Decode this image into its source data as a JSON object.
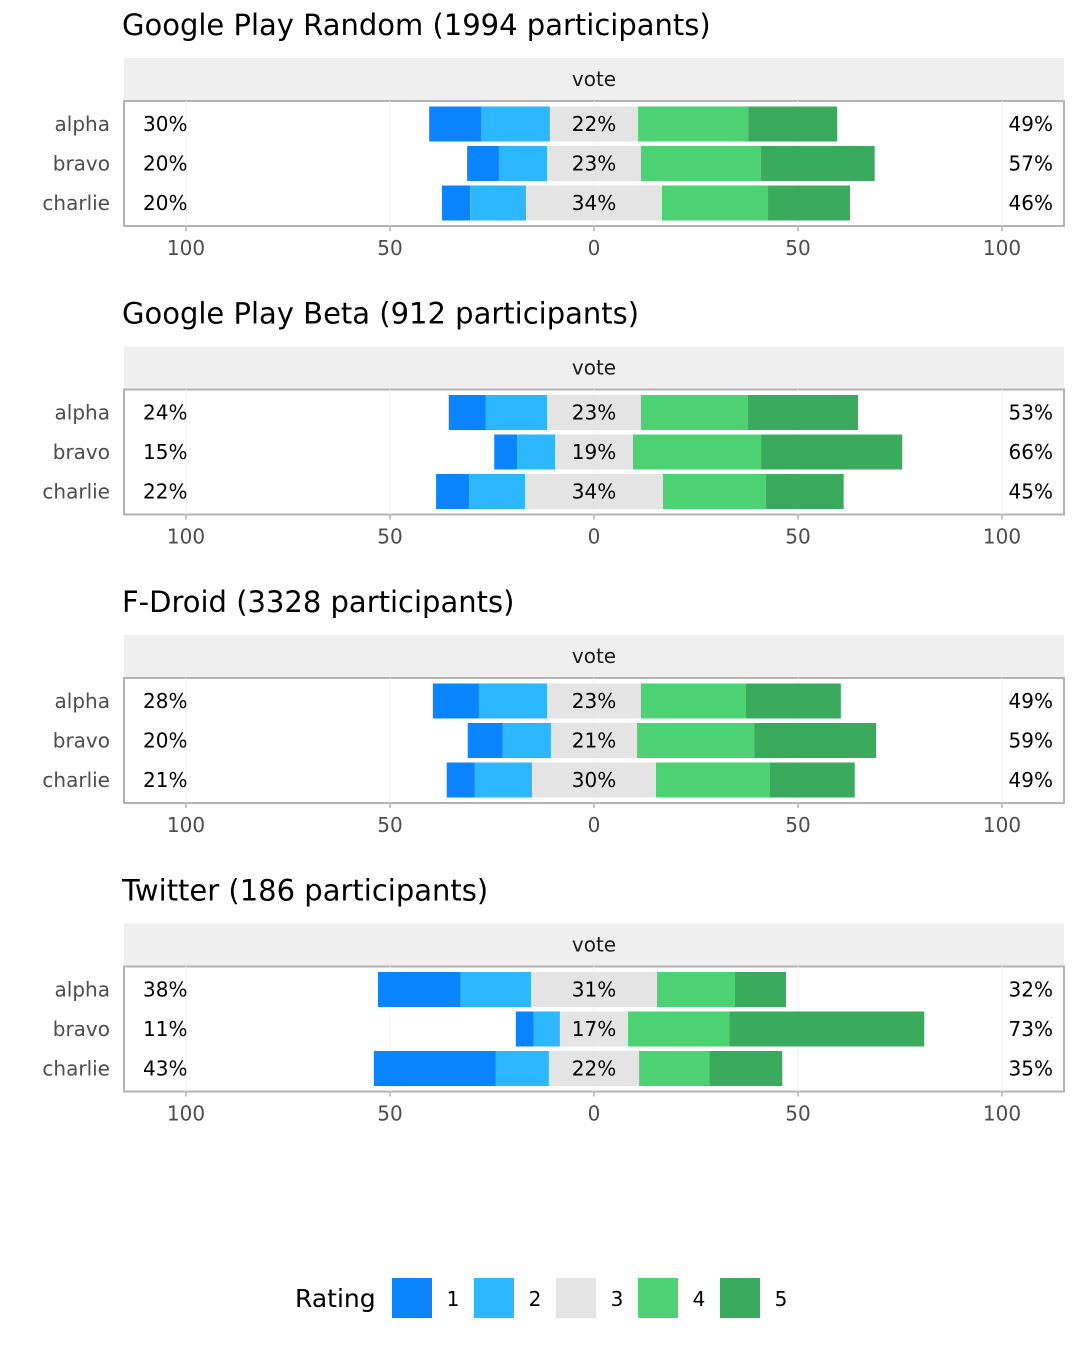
{
  "chart_data": {
    "type": "bar",
    "subtype": "diverging-stacked-likert",
    "legend": {
      "title": "Rating",
      "entries": [
        "1",
        "2",
        "3",
        "4",
        "5"
      ],
      "placement": "bottom"
    },
    "colors": {
      "1": "#0a84ff",
      "2": "#2db7ff",
      "3": "#e4e4e4",
      "4": "#4cd173",
      "5": "#3aab5c"
    },
    "xlim": [
      -115,
      115
    ],
    "xticks": [
      -100,
      -50,
      0,
      50,
      100
    ],
    "xtick_labels": [
      "100",
      "50",
      "0",
      "50",
      "100"
    ],
    "panels": [
      {
        "title": "Google Play Random (1994 participants)",
        "strip": "vote",
        "rows": [
          {
            "label": "alpha",
            "values": [
              12.7,
              16.9,
              21.6,
              27.0,
              21.8
            ],
            "left": "30%",
            "center": "22%",
            "right": "49%"
          },
          {
            "label": "bravo",
            "values": [
              7.8,
              11.8,
              23.0,
              29.4,
              27.9
            ],
            "left": "20%",
            "center": "23%",
            "right": "57%"
          },
          {
            "label": "charlie",
            "values": [
              6.9,
              13.7,
              33.3,
              26.0,
              20.1
            ],
            "left": "20%",
            "center": "34%",
            "right": "46%"
          }
        ]
      },
      {
        "title": "Google Play Beta (912 participants)",
        "strip": "vote",
        "rows": [
          {
            "label": "alpha",
            "values": [
              9.1,
              15.0,
              23.0,
              26.2,
              27.0
            ],
            "left": "24%",
            "center": "23%",
            "right": "53%"
          },
          {
            "label": "bravo",
            "values": [
              5.6,
              9.3,
              19.1,
              31.4,
              34.6
            ],
            "left": "15%",
            "center": "19%",
            "right": "66%"
          },
          {
            "label": "charlie",
            "values": [
              8.1,
              13.7,
              33.8,
              25.2,
              19.1
            ],
            "left": "22%",
            "center": "34%",
            "right": "45%"
          }
        ]
      },
      {
        "title": "F-Droid (3328 participants)",
        "strip": "vote",
        "rows": [
          {
            "label": "alpha",
            "values": [
              11.3,
              16.7,
              23.0,
              25.7,
              23.3
            ],
            "left": "28%",
            "center": "23%",
            "right": "49%"
          },
          {
            "label": "bravo",
            "values": [
              8.6,
              11.8,
              21.1,
              28.7,
              29.9
            ],
            "left": "20%",
            "center": "21%",
            "right": "59%"
          },
          {
            "label": "charlie",
            "values": [
              6.9,
              14.0,
              30.4,
              27.9,
              20.8
            ],
            "left": "21%",
            "center": "30%",
            "right": "49%"
          }
        ]
      },
      {
        "title": "Twitter (186 participants)",
        "strip": "vote",
        "rows": [
          {
            "label": "alpha",
            "values": [
              20.3,
              17.2,
              30.9,
              19.1,
              12.5
            ],
            "left": "38%",
            "center": "31%",
            "right": "32%"
          },
          {
            "label": "bravo",
            "values": [
              4.4,
              6.4,
              16.7,
              24.8,
              47.8
            ],
            "left": "11%",
            "center": "17%",
            "right": "73%"
          },
          {
            "label": "charlie",
            "values": [
              29.9,
              13.0,
              22.1,
              17.2,
              17.9
            ],
            "left": "43%",
            "center": "22%",
            "right": "35%"
          }
        ]
      }
    ]
  }
}
